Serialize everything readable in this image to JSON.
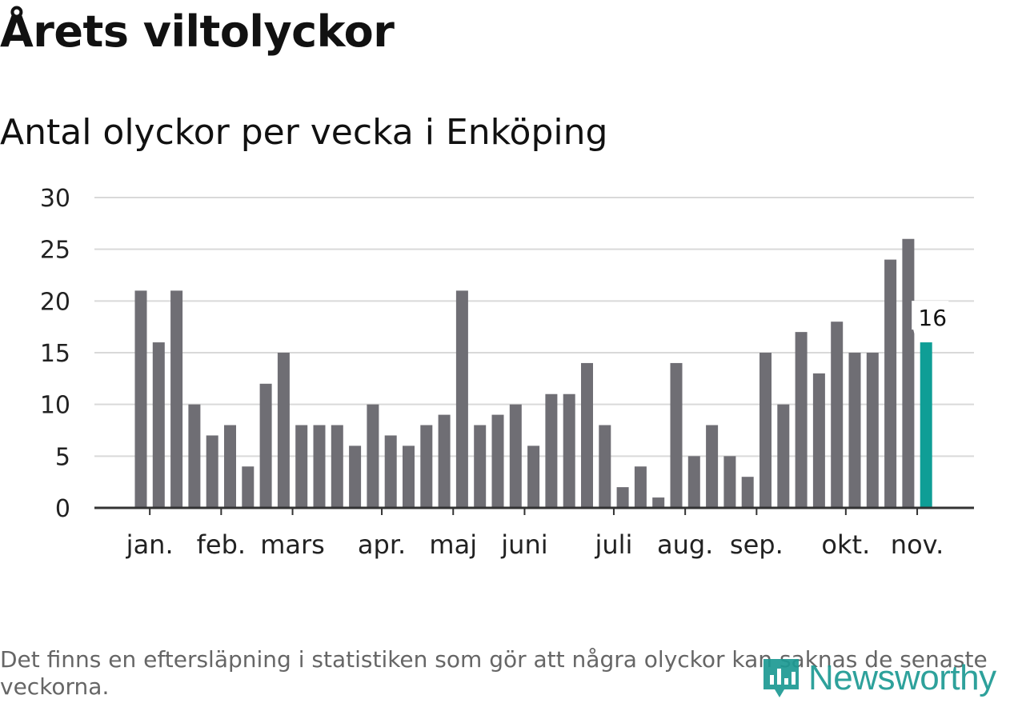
{
  "header": {
    "title": "Årets viltolyckor",
    "subtitle": "Antal olyckor per vecka i Enköping"
  },
  "footer": {
    "note": "Det finns en eftersläpning i statistiken som gör att några olyckor kan saknas de senaste veckorna.",
    "brand": "Newsworthy"
  },
  "colors": {
    "bar": "#6f6e74",
    "highlight": "#0f9e96",
    "brand": "#1d9a93"
  },
  "chart_data": {
    "type": "bar",
    "title": "Antal olyckor per vecka i Enköping",
    "ylim": [
      0,
      30
    ],
    "yticks": [
      "0",
      "5",
      "10",
      "15",
      "20",
      "25",
      "30"
    ],
    "values": [
      21,
      16,
      21,
      10,
      7,
      8,
      4,
      12,
      15,
      8,
      8,
      8,
      6,
      10,
      7,
      6,
      8,
      9,
      21,
      8,
      9,
      10,
      6,
      11,
      11,
      14,
      8,
      2,
      4,
      1,
      14,
      5,
      8,
      5,
      3,
      15,
      10,
      17,
      13,
      18,
      15,
      15,
      24,
      26,
      16
    ],
    "highlight_index": 44,
    "highlight_label": "16",
    "month_labels": [
      {
        "label": "jan.",
        "week": 0.5
      },
      {
        "label": "feb.",
        "week": 4.5
      },
      {
        "label": "mars",
        "week": 8.5
      },
      {
        "label": "apr.",
        "week": 13.5
      },
      {
        "label": "maj",
        "week": 17.5
      },
      {
        "label": "juni",
        "week": 21.5
      },
      {
        "label": "juli",
        "week": 26.5
      },
      {
        "label": "aug.",
        "week": 30.5
      },
      {
        "label": "sep.",
        "week": 34.5
      },
      {
        "label": "okt.",
        "week": 39.5
      },
      {
        "label": "nov.",
        "week": 43.5
      }
    ],
    "grid": true,
    "legend": "none"
  }
}
